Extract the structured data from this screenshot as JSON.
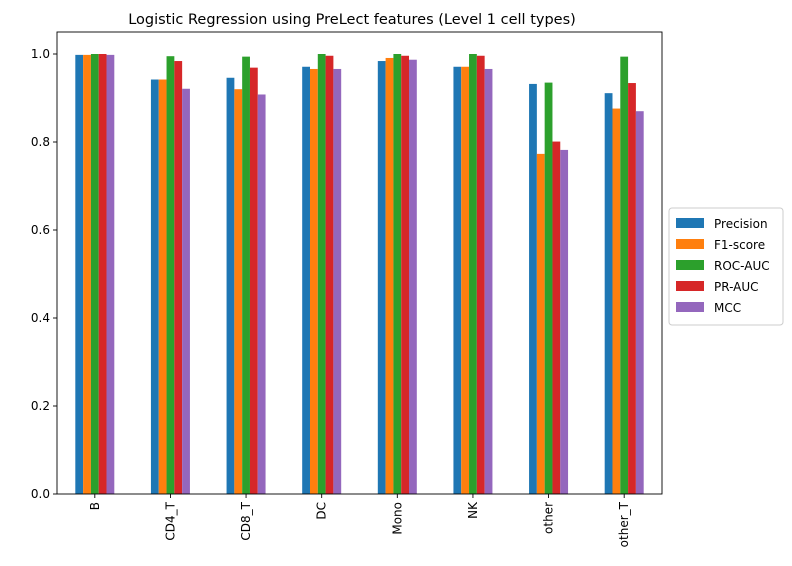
{
  "chart_data": {
    "type": "bar",
    "title": "Logistic Regression using PreLect features (Level 1 cell types)",
    "xlabel": "",
    "ylabel": "",
    "ylim": [
      0.0,
      1.05
    ],
    "yticks": [
      "0.0",
      "0.2",
      "0.4",
      "0.6",
      "0.8",
      "1.0"
    ],
    "grid": false,
    "legend_position": "center-right-outside",
    "categories": [
      "B",
      "CD4_T",
      "CD8_T",
      "DC",
      "Mono",
      "NK",
      "other",
      "other_T"
    ],
    "series": [
      {
        "name": "Precision",
        "color": "#1f77b4",
        "values": [
          0.998,
          0.942,
          0.946,
          0.971,
          0.984,
          0.971,
          0.932,
          0.911
        ]
      },
      {
        "name": "F1-score",
        "color": "#ff7f0e",
        "values": [
          0.998,
          0.942,
          0.92,
          0.966,
          0.991,
          0.971,
          0.773,
          0.876
        ]
      },
      {
        "name": "ROC-AUC",
        "color": "#2ca02c",
        "values": [
          1.0,
          0.995,
          0.994,
          1.0,
          1.0,
          1.0,
          0.935,
          0.994
        ]
      },
      {
        "name": "PR-AUC",
        "color": "#d62728",
        "values": [
          1.0,
          0.984,
          0.969,
          0.996,
          0.996,
          0.996,
          0.801,
          0.934
        ]
      },
      {
        "name": "MCC",
        "color": "#9467bd",
        "values": [
          0.998,
          0.921,
          0.908,
          0.966,
          0.987,
          0.966,
          0.782,
          0.87
        ]
      }
    ]
  }
}
